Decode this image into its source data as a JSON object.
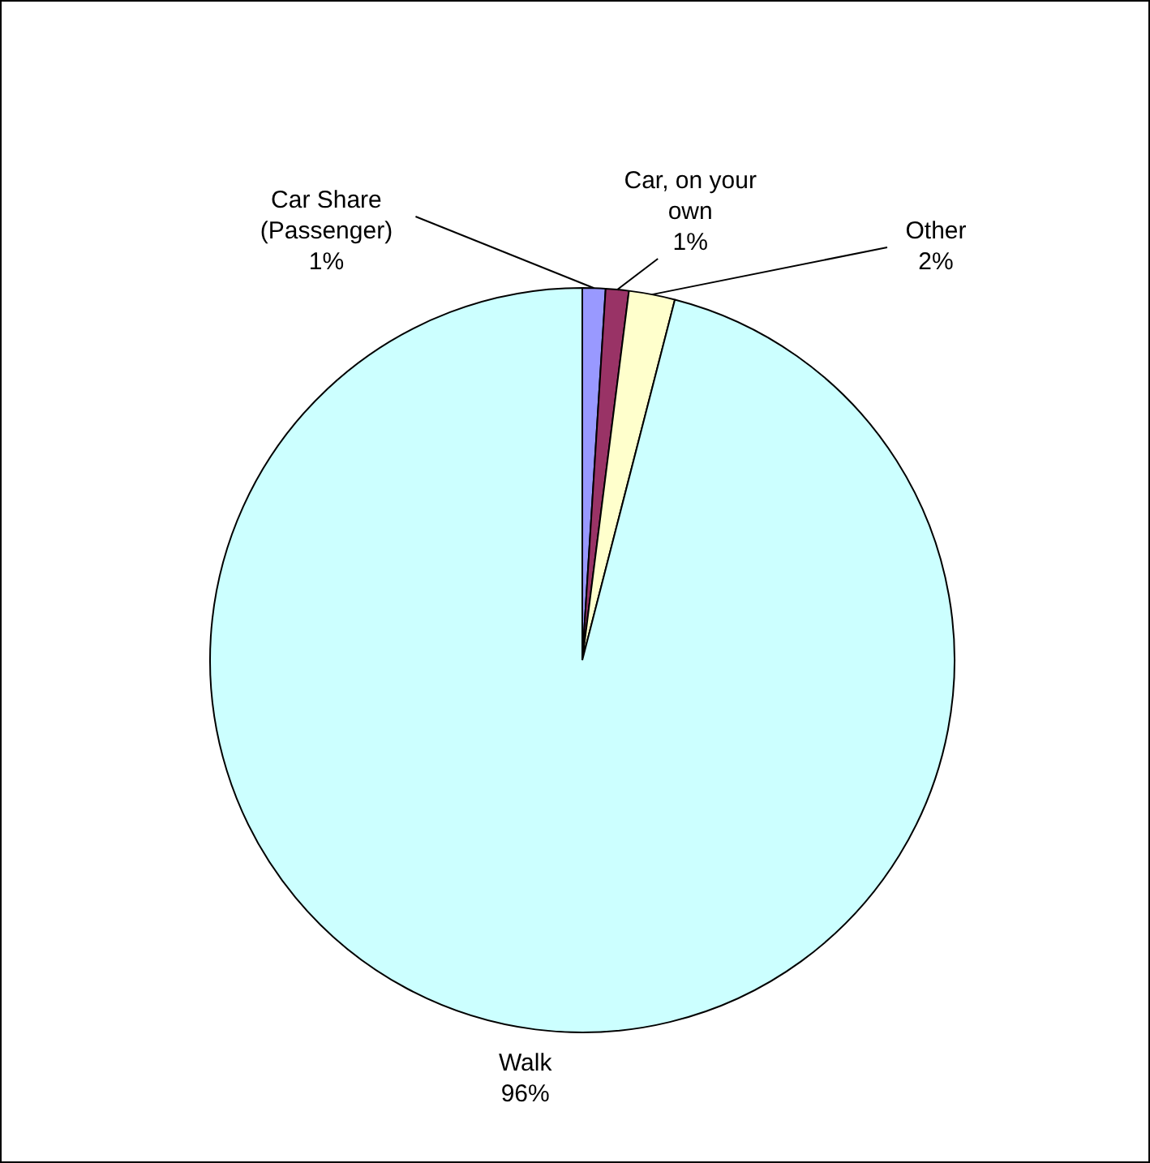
{
  "chart_data": {
    "type": "pie",
    "categories": [
      "Car Share (Passenger)",
      "Car, on your own",
      "Other",
      "Walk"
    ],
    "values": [
      1,
      1,
      2,
      96
    ],
    "colors": [
      "#9999ff",
      "#993366",
      "#ffffcc",
      "#ccffff"
    ],
    "value_labels": [
      "1%",
      "1%",
      "2%",
      "96%"
    ],
    "legend": false
  }
}
